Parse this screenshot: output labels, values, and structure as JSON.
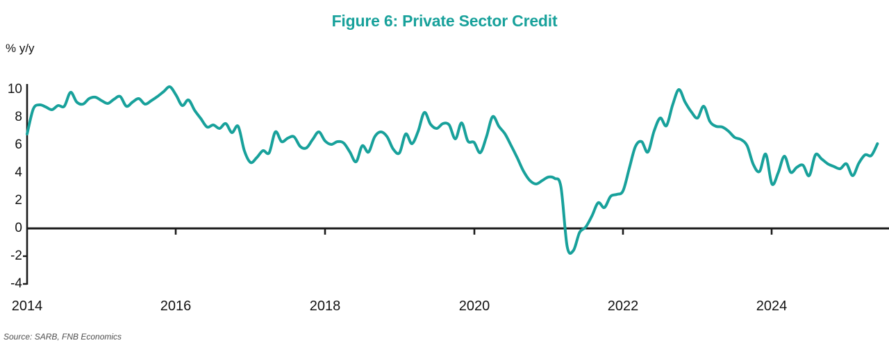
{
  "title": "Figure 6: Private Sector Credit",
  "y_axis_label": "% y/y",
  "source": "Source: SARB, FNB Economics",
  "colors": {
    "accent": "#18a19b",
    "line": "#18a19b",
    "axis": "#1a1a1a",
    "text": "#111111",
    "source_text": "#4d4d4d"
  },
  "chart_data": {
    "type": "line",
    "title": "Figure 6: Private Sector Credit",
    "ylabel": "% y/y",
    "xlabel": "",
    "grid": false,
    "legend_position": "none",
    "ylim": [
      -4,
      10.5
    ],
    "y_ticks": [
      10,
      8,
      6,
      4,
      2,
      0,
      -2,
      -4
    ],
    "x_tick_labels": [
      "2014",
      "2016",
      "2018",
      "2020",
      "2022",
      "2024"
    ],
    "frequency": "monthly",
    "x_start": "2014-01",
    "x_end": "2025-06",
    "series": [
      {
        "name": "Private sector credit, % y/y",
        "color": "#18a19b",
        "values": [
          6.8,
          8.6,
          8.9,
          8.75,
          8.55,
          8.85,
          8.8,
          9.8,
          9.1,
          8.95,
          9.35,
          9.45,
          9.2,
          9.0,
          9.3,
          9.5,
          8.8,
          9.1,
          9.35,
          8.95,
          9.2,
          9.5,
          9.85,
          10.2,
          9.6,
          8.85,
          9.25,
          8.5,
          7.9,
          7.3,
          7.45,
          7.2,
          7.55,
          6.9,
          7.35,
          5.6,
          4.75,
          5.1,
          5.6,
          5.45,
          6.95,
          6.25,
          6.5,
          6.6,
          5.9,
          5.8,
          6.4,
          6.95,
          6.3,
          6.05,
          6.25,
          6.15,
          5.5,
          4.8,
          5.95,
          5.5,
          6.6,
          6.95,
          6.6,
          5.7,
          5.45,
          6.8,
          6.1,
          7.0,
          8.35,
          7.5,
          7.2,
          7.55,
          7.45,
          6.45,
          7.6,
          6.3,
          6.2,
          5.45,
          6.6,
          8.05,
          7.35,
          6.8,
          5.95,
          5.05,
          4.1,
          3.45,
          3.2,
          3.45,
          3.7,
          3.6,
          3.0,
          -1.3,
          -1.6,
          -0.3,
          0.1,
          0.9,
          1.85,
          1.5,
          2.3,
          2.45,
          2.7,
          4.3,
          5.9,
          6.25,
          5.5,
          7.0,
          7.95,
          7.4,
          8.9,
          10.0,
          9.1,
          8.4,
          7.95,
          8.8,
          7.7,
          7.35,
          7.3,
          7.0,
          6.55,
          6.4,
          5.95,
          4.6,
          4.1,
          5.35,
          3.2,
          4.0,
          5.2,
          4.05,
          4.4,
          4.55,
          3.8,
          5.3,
          5.0,
          4.65,
          4.45,
          4.3,
          4.65,
          3.8,
          4.7,
          5.3,
          5.25,
          6.1
        ]
      }
    ]
  }
}
